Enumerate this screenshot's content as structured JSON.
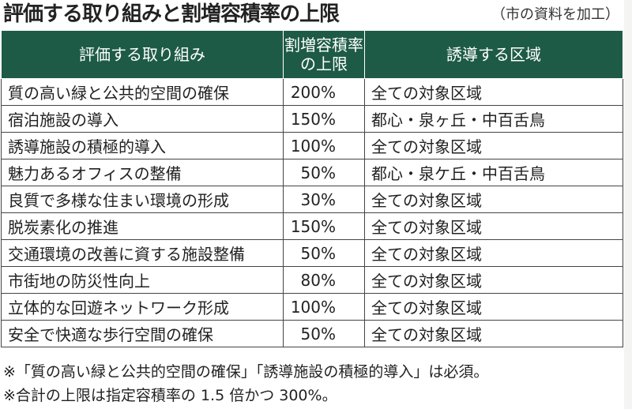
{
  "title": "評価する取り組みと割増容積率の上限",
  "source": "（市の資料を加工）",
  "table": {
    "headers": [
      "評価する取り組み",
      "割増容積率の上限",
      "誘導する区域"
    ],
    "header_color": "#1e5b47",
    "rows": [
      [
        "質の高い緑と公共的空間の確保",
        "200%",
        "全ての対象区域"
      ],
      [
        "宿泊施設の導入",
        "150%",
        "都心・泉ヶ丘・中百舌鳥"
      ],
      [
        "誘導施設の積極的導入",
        "100%",
        "全ての対象区域"
      ],
      [
        "魅力あるオフィスの整備",
        "50%",
        "都心・泉ケ丘・中百舌鳥"
      ],
      [
        "良質で多様な住まい環境の形成",
        "30%",
        "全ての対象区域"
      ],
      [
        "脱炭素化の推進",
        "150%",
        "全ての対象区域"
      ],
      [
        "交通環境の改善に資する施設整備",
        "50%",
        "全ての対象区域"
      ],
      [
        "市街地の防災性向上",
        "80%",
        "全ての対象区域"
      ],
      [
        "立体的な回遊ネットワーク形成",
        "100%",
        "全ての対象区域"
      ],
      [
        "安全で快適な歩行空間の確保",
        "50%",
        "全ての対象区域"
      ]
    ]
  },
  "notes": [
    "※「質の高い緑と公共的空間の確保」「誘導施設の積極的導入」は必須。",
    "※合計の上限は指定容積率の 1.5 倍かつ 300%。"
  ]
}
